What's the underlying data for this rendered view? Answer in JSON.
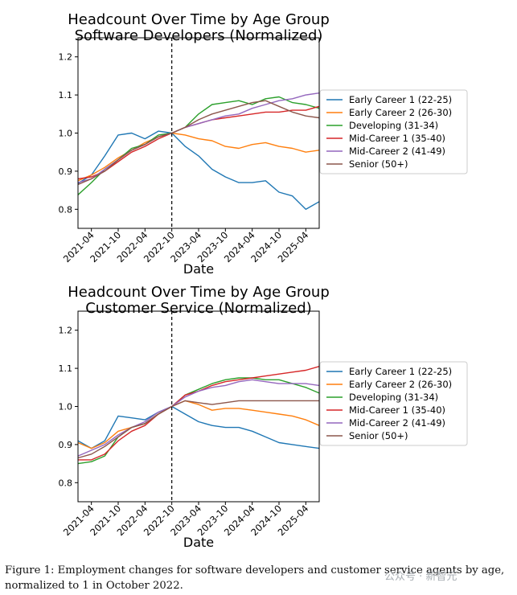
{
  "figure": {
    "caption": "Figure 1: Employment changes for software developers and customer service agents by age, normalized to 1 in October 2022.",
    "watermark": "公众号 · 新智元"
  },
  "colors": {
    "Early Career 1 (22-25)": "#1f77b4",
    "Early Career 2 (26-30)": "#ff7f0e",
    "Developing (31-34)": "#2ca02c",
    "Mid-Career 1 (35-40)": "#d62728",
    "Mid-Career 2 (41-49)": "#9467bd",
    "Senior (50+)": "#8c564b"
  },
  "chart_data": [
    {
      "type": "line",
      "title": "Headcount Over Time by Age Group",
      "subtitle": "Software Developers (Normalized)",
      "xlabel": "Date",
      "ylabel": "",
      "ylim": [
        0.75,
        1.25
      ],
      "yticks": [
        0.8,
        0.9,
        1.0,
        1.1,
        1.2
      ],
      "xlim": [
        "2021-01",
        "2025-07"
      ],
      "xticks": [
        "2021-04",
        "2021-10",
        "2022-04",
        "2022-10",
        "2023-04",
        "2023-10",
        "2024-04",
        "2024-10",
        "2025-04"
      ],
      "vline": "2022-10",
      "legend": "right",
      "grid": false,
      "series": [
        {
          "name": "Early Career 1 (22-25)",
          "x": [
            "2021-01",
            "2021-04",
            "2021-07",
            "2021-10",
            "2022-01",
            "2022-04",
            "2022-07",
            "2022-10",
            "2023-01",
            "2023-04",
            "2023-07",
            "2023-10",
            "2024-01",
            "2024-04",
            "2024-07",
            "2024-10",
            "2025-01",
            "2025-04",
            "2025-07"
          ],
          "y": [
            0.868,
            0.89,
            0.94,
            0.995,
            1.0,
            0.985,
            1.005,
            1.0,
            0.965,
            0.94,
            0.905,
            0.885,
            0.87,
            0.87,
            0.875,
            0.845,
            0.835,
            0.8,
            0.82
          ]
        },
        {
          "name": "Early Career 2 (26-30)",
          "x": [
            "2021-01",
            "2021-04",
            "2021-07",
            "2021-10",
            "2022-01",
            "2022-04",
            "2022-07",
            "2022-10",
            "2023-01",
            "2023-04",
            "2023-07",
            "2023-10",
            "2024-01",
            "2024-04",
            "2024-07",
            "2024-10",
            "2025-01",
            "2025-04",
            "2025-07"
          ],
          "y": [
            0.875,
            0.89,
            0.91,
            0.935,
            0.955,
            0.975,
            0.99,
            1.0,
            0.995,
            0.985,
            0.98,
            0.965,
            0.96,
            0.97,
            0.975,
            0.965,
            0.96,
            0.95,
            0.955
          ]
        },
        {
          "name": "Developing (31-34)",
          "x": [
            "2021-01",
            "2021-04",
            "2021-07",
            "2021-10",
            "2022-01",
            "2022-04",
            "2022-07",
            "2022-10",
            "2023-01",
            "2023-04",
            "2023-07",
            "2023-10",
            "2024-01",
            "2024-04",
            "2024-07",
            "2024-10",
            "2025-01",
            "2025-04",
            "2025-07"
          ],
          "y": [
            0.838,
            0.87,
            0.905,
            0.93,
            0.96,
            0.97,
            0.995,
            1.0,
            1.015,
            1.05,
            1.075,
            1.08,
            1.085,
            1.075,
            1.09,
            1.095,
            1.08,
            1.075,
            1.065
          ]
        },
        {
          "name": "Mid-Career 1 (35-40)",
          "x": [
            "2021-01",
            "2021-04",
            "2021-07",
            "2021-10",
            "2022-01",
            "2022-04",
            "2022-07",
            "2022-10",
            "2023-01",
            "2023-04",
            "2023-07",
            "2023-10",
            "2024-01",
            "2024-04",
            "2024-07",
            "2024-10",
            "2025-01",
            "2025-04",
            "2025-07"
          ],
          "y": [
            0.88,
            0.885,
            0.9,
            0.925,
            0.95,
            0.965,
            0.985,
            1.0,
            1.015,
            1.025,
            1.035,
            1.04,
            1.045,
            1.05,
            1.055,
            1.055,
            1.06,
            1.06,
            1.07
          ]
        },
        {
          "name": "Mid-Career 2 (41-49)",
          "x": [
            "2021-01",
            "2021-04",
            "2021-07",
            "2021-10",
            "2022-01",
            "2022-04",
            "2022-07",
            "2022-10",
            "2023-01",
            "2023-04",
            "2023-07",
            "2023-10",
            "2024-01",
            "2024-04",
            "2024-07",
            "2024-10",
            "2025-01",
            "2025-04",
            "2025-07"
          ],
          "y": [
            0.87,
            0.88,
            0.905,
            0.93,
            0.955,
            0.97,
            0.99,
            1.0,
            1.015,
            1.025,
            1.035,
            1.045,
            1.05,
            1.065,
            1.075,
            1.085,
            1.09,
            1.1,
            1.105
          ]
        },
        {
          "name": "Senior (50+)",
          "x": [
            "2021-01",
            "2021-04",
            "2021-07",
            "2021-10",
            "2022-01",
            "2022-04",
            "2022-07",
            "2022-10",
            "2023-01",
            "2023-04",
            "2023-07",
            "2023-10",
            "2024-01",
            "2024-04",
            "2024-07",
            "2024-10",
            "2025-01",
            "2025-04",
            "2025-07"
          ],
          "y": [
            0.865,
            0.88,
            0.9,
            0.93,
            0.955,
            0.97,
            0.99,
            1.0,
            1.015,
            1.035,
            1.05,
            1.06,
            1.07,
            1.08,
            1.085,
            1.07,
            1.055,
            1.045,
            1.04
          ]
        }
      ]
    },
    {
      "type": "line",
      "title": "Headcount Over Time by Age Group",
      "subtitle": "Customer Service (Normalized)",
      "xlabel": "Date",
      "ylabel": "",
      "ylim": [
        0.75,
        1.25
      ],
      "yticks": [
        0.8,
        0.9,
        1.0,
        1.1,
        1.2
      ],
      "xlim": [
        "2021-01",
        "2025-07"
      ],
      "xticks": [
        "2021-04",
        "2021-10",
        "2022-04",
        "2022-10",
        "2023-04",
        "2023-10",
        "2024-04",
        "2024-10",
        "2025-04"
      ],
      "vline": "2022-10",
      "legend": "right",
      "grid": false,
      "series": [
        {
          "name": "Early Career 1 (22-25)",
          "x": [
            "2021-01",
            "2021-04",
            "2021-07",
            "2021-10",
            "2022-01",
            "2022-04",
            "2022-07",
            "2022-10",
            "2023-01",
            "2023-04",
            "2023-07",
            "2023-10",
            "2024-01",
            "2024-04",
            "2024-07",
            "2024-10",
            "2025-01",
            "2025-04",
            "2025-07"
          ],
          "y": [
            0.91,
            0.89,
            0.91,
            0.975,
            0.97,
            0.965,
            0.985,
            1.0,
            0.98,
            0.96,
            0.95,
            0.945,
            0.945,
            0.935,
            0.92,
            0.905,
            0.9,
            0.895,
            0.89
          ]
        },
        {
          "name": "Early Career 2 (26-30)",
          "x": [
            "2021-01",
            "2021-04",
            "2021-07",
            "2021-10",
            "2022-01",
            "2022-04",
            "2022-07",
            "2022-10",
            "2023-01",
            "2023-04",
            "2023-07",
            "2023-10",
            "2024-01",
            "2024-04",
            "2024-07",
            "2024-10",
            "2025-01",
            "2025-04",
            "2025-07"
          ],
          "y": [
            0.905,
            0.89,
            0.905,
            0.935,
            0.945,
            0.955,
            0.98,
            1.0,
            1.015,
            1.005,
            0.99,
            0.995,
            0.995,
            0.99,
            0.985,
            0.98,
            0.975,
            0.965,
            0.95
          ]
        },
        {
          "name": "Developing (31-34)",
          "x": [
            "2021-01",
            "2021-04",
            "2021-07",
            "2021-10",
            "2022-01",
            "2022-04",
            "2022-07",
            "2022-10",
            "2023-01",
            "2023-04",
            "2023-07",
            "2023-10",
            "2024-01",
            "2024-04",
            "2024-07",
            "2024-10",
            "2025-01",
            "2025-04",
            "2025-07"
          ],
          "y": [
            0.85,
            0.855,
            0.87,
            0.92,
            0.945,
            0.955,
            0.98,
            1.0,
            1.03,
            1.045,
            1.06,
            1.07,
            1.075,
            1.075,
            1.07,
            1.07,
            1.06,
            1.05,
            1.035
          ]
        },
        {
          "name": "Mid-Career 1 (35-40)",
          "x": [
            "2021-01",
            "2021-04",
            "2021-07",
            "2021-10",
            "2022-01",
            "2022-04",
            "2022-07",
            "2022-10",
            "2023-01",
            "2023-04",
            "2023-07",
            "2023-10",
            "2024-01",
            "2024-04",
            "2024-07",
            "2024-10",
            "2025-01",
            "2025-04",
            "2025-07"
          ],
          "y": [
            0.86,
            0.86,
            0.875,
            0.91,
            0.935,
            0.95,
            0.98,
            1.0,
            1.03,
            1.04,
            1.055,
            1.065,
            1.07,
            1.075,
            1.08,
            1.085,
            1.09,
            1.095,
            1.105
          ]
        },
        {
          "name": "Mid-Career 2 (41-49)",
          "x": [
            "2021-01",
            "2021-04",
            "2021-07",
            "2021-10",
            "2022-01",
            "2022-04",
            "2022-07",
            "2022-10",
            "2023-01",
            "2023-04",
            "2023-07",
            "2023-10",
            "2024-01",
            "2024-04",
            "2024-07",
            "2024-10",
            "2025-01",
            "2025-04",
            "2025-07"
          ],
          "y": [
            0.87,
            0.885,
            0.9,
            0.925,
            0.945,
            0.96,
            0.985,
            1.0,
            1.025,
            1.04,
            1.05,
            1.055,
            1.065,
            1.07,
            1.065,
            1.06,
            1.06,
            1.06,
            1.055
          ]
        },
        {
          "name": "Senior (50+)",
          "x": [
            "2021-01",
            "2021-04",
            "2021-07",
            "2021-10",
            "2022-01",
            "2022-04",
            "2022-07",
            "2022-10",
            "2023-01",
            "2023-04",
            "2023-07",
            "2023-10",
            "2024-01",
            "2024-04",
            "2024-07",
            "2024-10",
            "2025-01",
            "2025-04",
            "2025-07"
          ],
          "y": [
            0.865,
            0.875,
            0.895,
            0.92,
            0.945,
            0.955,
            0.98,
            1.0,
            1.015,
            1.01,
            1.005,
            1.01,
            1.015,
            1.015,
            1.015,
            1.015,
            1.015,
            1.015,
            1.015
          ]
        }
      ]
    }
  ]
}
